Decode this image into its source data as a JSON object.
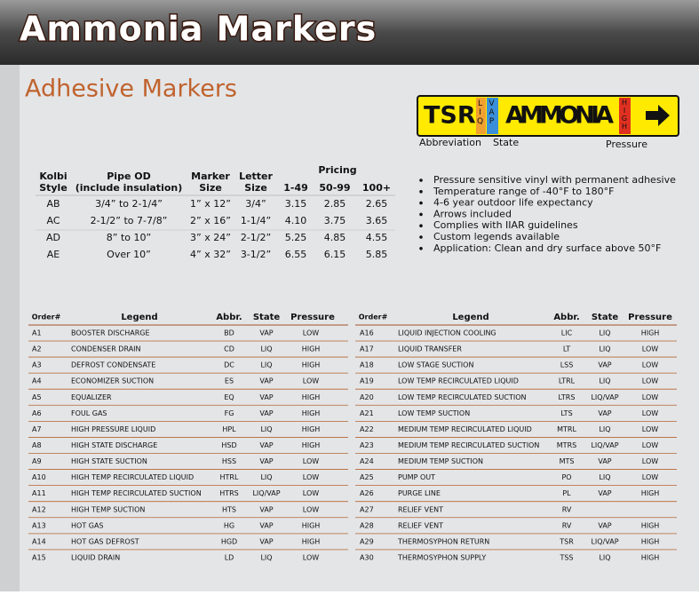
{
  "header": {
    "title": "Ammonia Markers"
  },
  "section_title": "Adhesive Markers",
  "marker_sample": {
    "abbreviation": "TSR",
    "state_1": "LIQ",
    "state_2": "VAP",
    "legend": "AMMONIA",
    "pressure": "HIGH",
    "captions": [
      "Abbreviation",
      "State",
      "Pressure"
    ]
  },
  "pricing_table": {
    "headers": [
      "Kolbi Style",
      "Pipe OD (include insulation)",
      "Marker Size",
      "Letter Size"
    ],
    "pricing_header": "Pricing",
    "pricing_columns": [
      "1-49",
      "50-99",
      "100+"
    ],
    "rows": [
      [
        "AB",
        "3/4” to 2-1/4”",
        "1” x 12”",
        "3/4”",
        "3.15",
        "2.85",
        "2.65"
      ],
      [
        "AC",
        "2-1/2” to 7-7/8”",
        "2” x 16”",
        "1-1/4”",
        "4.10",
        "3.75",
        "3.65"
      ],
      [
        "AD",
        "8” to 10”",
        "3” x 24”",
        "2-1/2”",
        "5.25",
        "4.85",
        "4.55"
      ],
      [
        "AE",
        "Over 10”",
        "4” x 32”",
        "3-1/2”",
        "6.55",
        "6.15",
        "5.85"
      ]
    ]
  },
  "features": [
    "Pressure sensitive vinyl with permanent adhesive",
    "Temperature range of -40°F to 180°F",
    "4-6 year outdoor life expectancy",
    "Arrows included",
    "Complies with IIAR guidelines",
    "Custom legends available",
    "Application: Clean and dry surface above 50°F"
  ],
  "order_tables": [
    {
      "headers": [
        "Order#",
        "Legend",
        "Abbr.",
        "State",
        "Pressure"
      ],
      "rows": [
        [
          "A1",
          "BOOSTER DISCHARGE",
          "BD",
          "VAP",
          "LOW"
        ],
        [
          "A2",
          "CONDENSER DRAIN",
          "CD",
          "LIQ",
          "HIGH"
        ],
        [
          "A3",
          "DEFROST CONDENSATE",
          "DC",
          "LIQ",
          "HIGH"
        ],
        [
          "A4",
          "ECONOMIZER SUCTION",
          "ES",
          "VAP",
          "LOW"
        ],
        [
          "A5",
          "EQUALIZER",
          "EQ",
          "VAP",
          "HIGH"
        ],
        [
          "A6",
          "FOUL GAS",
          "FG",
          "VAP",
          "HIGH"
        ],
        [
          "A7",
          "HIGH PRESSURE LIQUID",
          "HPL",
          "LIQ",
          "HIGH"
        ],
        [
          "A8",
          "HIGH STATE DISCHARGE",
          "HSD",
          "VAP",
          "HIGH"
        ],
        [
          "A9",
          "HIGH STATE SUCTION",
          "HSS",
          "VAP",
          "LOW"
        ],
        [
          "A10",
          "HIGH TEMP RECIRCULATED LIQUID",
          "HTRL",
          "LIQ",
          "LOW"
        ],
        [
          "A11",
          "HIGH TEMP RECIRCULATED SUCTION",
          "HTRS",
          "LIQ/VAP",
          "LOW"
        ],
        [
          "A12",
          "HIGH TEMP SUCTION",
          "HTS",
          "VAP",
          "LOW"
        ],
        [
          "A13",
          "HOT GAS",
          "HG",
          "VAP",
          "HIGH"
        ],
        [
          "A14",
          "HOT GAS DEFROST",
          "HGD",
          "VAP",
          "HIGH"
        ],
        [
          "A15",
          "LIQUID DRAIN",
          "LD",
          "LIQ",
          "LOW"
        ]
      ]
    },
    {
      "headers": [
        "Order#",
        "Legend",
        "Abbr.",
        "State",
        "Pressure"
      ],
      "rows": [
        [
          "A16",
          "LIQUID INJECTION COOLING",
          "LIC",
          "LIQ",
          "HIGH"
        ],
        [
          "A17",
          "LIQUID TRANSFER",
          "LT",
          "LIQ",
          "LOW"
        ],
        [
          "A18",
          "LOW STAGE SUCTION",
          "LSS",
          "VAP",
          "LOW"
        ],
        [
          "A19",
          "LOW TEMP RECIRCULATED LIQUID",
          "LTRL",
          "LIQ",
          "LOW"
        ],
        [
          "A20",
          "LOW TEMP RECIRCULATED SUCTION",
          "LTRS",
          "LIQ/VAP",
          "LOW"
        ],
        [
          "A21",
          "LOW TEMP SUCTION",
          "LTS",
          "VAP",
          "LOW"
        ],
        [
          "A22",
          "MEDIUM TEMP RECIRCULATED LIQUID",
          "MTRL",
          "LIQ",
          "LOW"
        ],
        [
          "A23",
          "MEDIUM TEMP RECIRCULATED SUCTION",
          "MTRS",
          "LIQ/VAP",
          "LOW"
        ],
        [
          "A24",
          "MEDIUM TEMP SUCTION",
          "MTS",
          "VAP",
          "LOW"
        ],
        [
          "A25",
          "PUMP OUT",
          "PO",
          "LIQ",
          "LOW"
        ],
        [
          "A26",
          "PURGE LINE",
          "PL",
          "VAP",
          "HIGH"
        ],
        [
          "A27",
          "RELIEF VENT",
          "RV",
          null,
          null
        ],
        [
          "A28",
          "RELIEF VENT",
          "RV",
          "VAP",
          "HIGH"
        ],
        [
          "A29",
          "THERMOSYPHON RETURN",
          "TSR",
          "LIQ/VAP",
          "HIGH"
        ],
        [
          "A30",
          "THERMOSYPHON SUPPLY",
          "TSS",
          "LIQ",
          "HIGH"
        ]
      ]
    }
  ]
}
